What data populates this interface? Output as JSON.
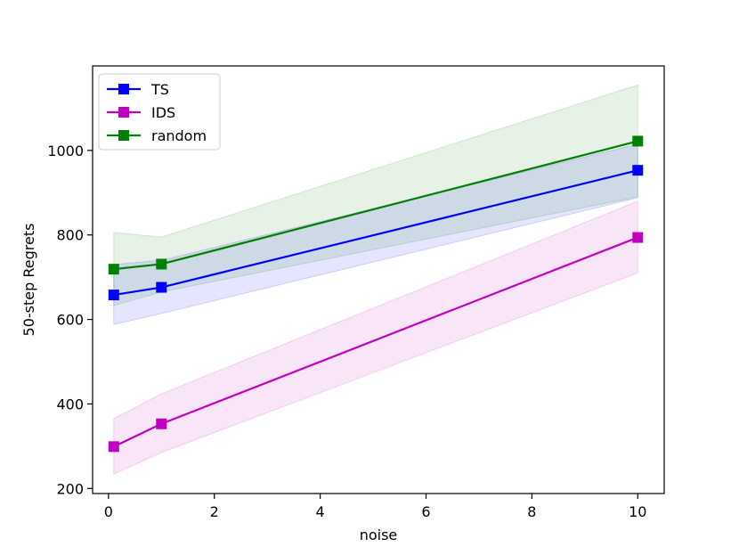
{
  "chart_data": {
    "type": "line",
    "xlabel": "noise",
    "ylabel": "50-step Regrets",
    "xlim": [
      -0.3,
      10.5
    ],
    "ylim": [
      188,
      1200
    ],
    "xticks": [
      0,
      2,
      4,
      6,
      8,
      10
    ],
    "yticks": [
      200,
      400,
      600,
      800,
      1000
    ],
    "grid": false,
    "legend_position": "top-left",
    "x": [
      0.1,
      1,
      10
    ],
    "series": [
      {
        "name": "TS",
        "color": "#0000ff",
        "marker": "square",
        "values": [
          658,
          676,
          953
        ],
        "band_lower": [
          588,
          614,
          888
        ],
        "band_upper": [
          730,
          740,
          1015
        ]
      },
      {
        "name": "IDS",
        "color": "#bf00bf",
        "marker": "square",
        "values": [
          299,
          353,
          794
        ],
        "band_lower": [
          234,
          285,
          710
        ],
        "band_upper": [
          365,
          424,
          880
        ]
      },
      {
        "name": "random",
        "color": "#008000",
        "marker": "square",
        "values": [
          719,
          731,
          1022
        ],
        "band_lower": [
          633,
          665,
          890
        ],
        "band_upper": [
          806,
          795,
          1155
        ]
      }
    ]
  }
}
